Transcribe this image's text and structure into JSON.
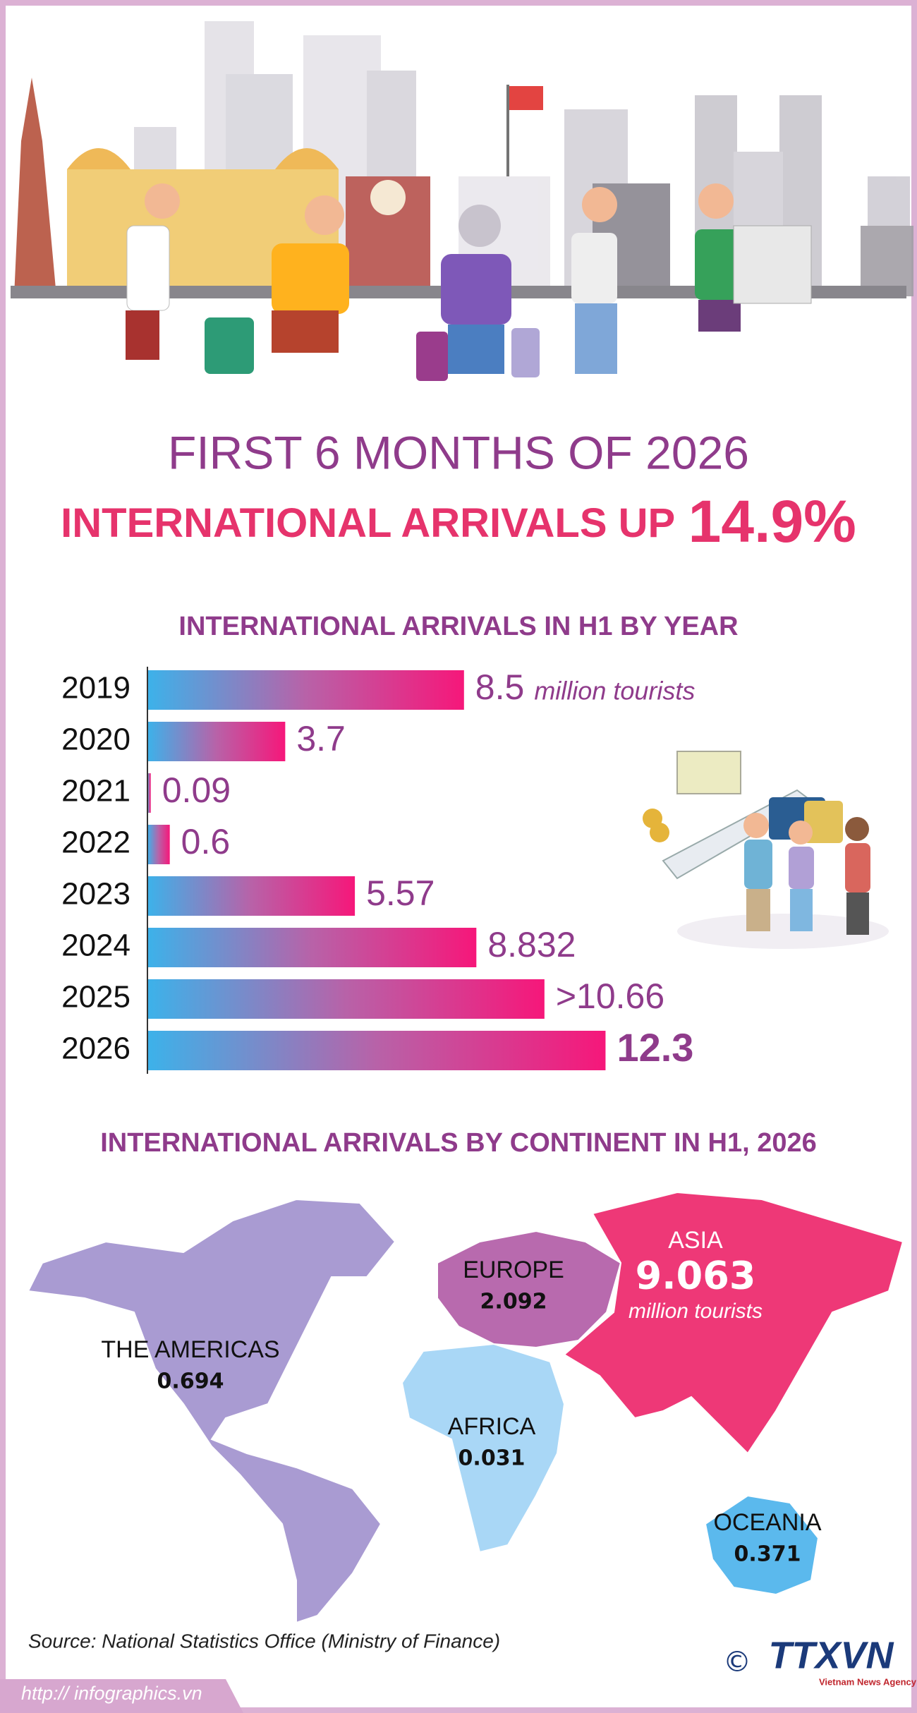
{
  "header": {
    "title": "FIRST 6 MONTHS OF 2026",
    "subtitle": "INTERNATIONAL ARRIVALS UP",
    "highlight": "14.9%"
  },
  "chart_data": {
    "type": "bar",
    "orientation": "horizontal",
    "title": "INTERNATIONAL ARRIVALS IN H1 BY YEAR",
    "categories": [
      "2019",
      "2020",
      "2021",
      "2022",
      "2023",
      "2024",
      "2025",
      "2026"
    ],
    "values": [
      8.5,
      3.7,
      0.09,
      0.6,
      5.57,
      8.832,
      10.66,
      12.3
    ],
    "value_labels": [
      "8.5",
      "3.7",
      "0.09",
      "0.6",
      "5.57",
      "8.832",
      ">10.66",
      "12.3"
    ],
    "unit_label": "million tourists",
    "xlim": [
      0,
      15
    ],
    "colors": [
      "#3cb2ea",
      "#b862a8",
      "#f6177a"
    ]
  },
  "map": {
    "title": "INTERNATIONAL ARRIVALS BY CONTINENT IN H1, 2026",
    "regions": [
      {
        "name": "THE AMERICAS",
        "value": 0.694,
        "color": "#a99bd2"
      },
      {
        "name": "EUROPE",
        "value": 2.092,
        "color": "#b86aae"
      },
      {
        "name": "ASIA",
        "value": 9.063,
        "color": "#ee3877",
        "unit_label": "million tourists"
      },
      {
        "name": "AFRICA",
        "value": 0.031,
        "color": "#a9d7f6"
      },
      {
        "name": "OCEANIA",
        "value": 0.371,
        "color": "#5bb9ed"
      }
    ]
  },
  "footer": {
    "source": "Source: National Statistics Office (Ministry of Finance)",
    "url": "http:// infographics.vn",
    "copyright": "©",
    "logo": "TTXVN",
    "agency": "Vietnam News Agency"
  }
}
